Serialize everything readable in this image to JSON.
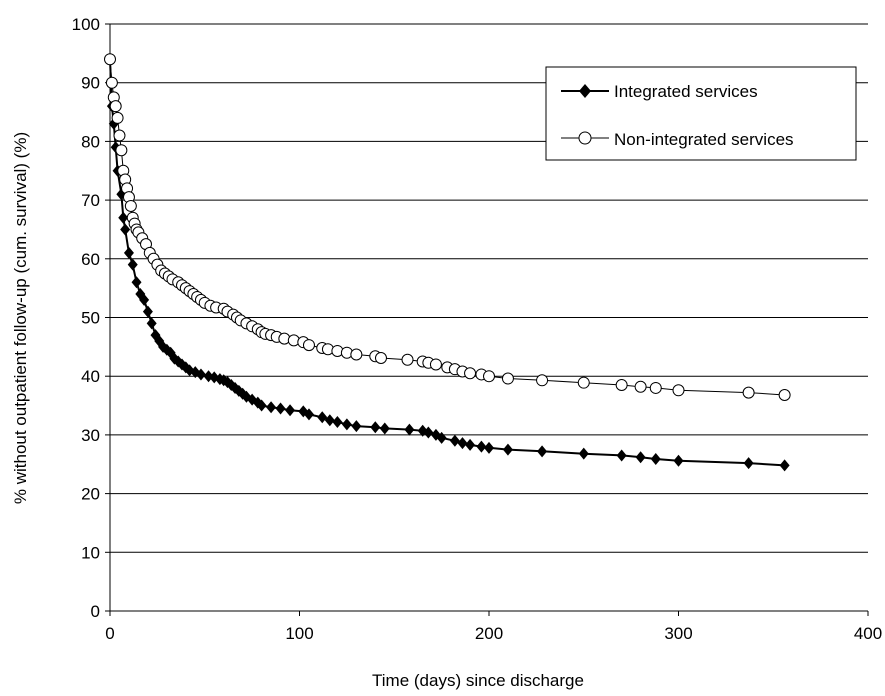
{
  "chart_data": {
    "type": "line",
    "xlabel": "Time (days) since discharge",
    "ylabel": "% without outpatient follow-up (cum. survival) (%)",
    "xlim": [
      0,
      400
    ],
    "ylim": [
      0,
      100
    ],
    "xticks": [
      0,
      100,
      200,
      300,
      400
    ],
    "yticks": [
      0,
      10,
      20,
      30,
      40,
      50,
      60,
      70,
      80,
      90,
      100
    ],
    "grid": "horizontal",
    "legend_position": "top-right",
    "series": [
      {
        "name": "Integrated services",
        "marker": "filled-diamond",
        "color": "#000000",
        "points": [
          [
            0,
            94
          ],
          [
            1,
            86
          ],
          [
            2,
            83
          ],
          [
            3,
            79
          ],
          [
            4,
            75
          ],
          [
            6,
            71
          ],
          [
            7,
            67
          ],
          [
            8,
            65
          ],
          [
            10,
            61
          ],
          [
            12,
            59
          ],
          [
            14,
            56
          ],
          [
            16,
            54
          ],
          [
            18,
            53
          ],
          [
            20,
            51
          ],
          [
            22,
            49
          ],
          [
            24,
            47
          ],
          [
            26,
            46
          ],
          [
            28,
            45
          ],
          [
            30,
            44.5
          ],
          [
            32,
            44
          ],
          [
            34,
            43
          ],
          [
            36,
            42.5
          ],
          [
            38,
            42
          ],
          [
            40,
            41.5
          ],
          [
            42,
            41
          ],
          [
            45,
            40.7
          ],
          [
            48,
            40.3
          ],
          [
            52,
            40
          ],
          [
            55,
            39.8
          ],
          [
            58,
            39.5
          ],
          [
            60,
            39.3
          ],
          [
            62,
            39
          ],
          [
            64,
            38.5
          ],
          [
            66,
            38
          ],
          [
            68,
            37.5
          ],
          [
            70,
            37
          ],
          [
            72,
            36.5
          ],
          [
            75,
            36
          ],
          [
            78,
            35.5
          ],
          [
            80,
            35
          ],
          [
            85,
            34.7
          ],
          [
            90,
            34.5
          ],
          [
            95,
            34.2
          ],
          [
            102,
            34
          ],
          [
            105,
            33.5
          ],
          [
            112,
            33
          ],
          [
            116,
            32.5
          ],
          [
            120,
            32.2
          ],
          [
            125,
            31.8
          ],
          [
            130,
            31.5
          ],
          [
            140,
            31.3
          ],
          [
            145,
            31.1
          ],
          [
            158,
            30.9
          ],
          [
            165,
            30.7
          ],
          [
            168,
            30.4
          ],
          [
            172,
            30
          ],
          [
            175,
            29.5
          ],
          [
            182,
            29
          ],
          [
            186,
            28.6
          ],
          [
            190,
            28.3
          ],
          [
            196,
            28
          ],
          [
            200,
            27.8
          ],
          [
            210,
            27.5
          ],
          [
            228,
            27.2
          ],
          [
            250,
            26.8
          ],
          [
            270,
            26.5
          ],
          [
            280,
            26.2
          ],
          [
            288,
            25.9
          ],
          [
            300,
            25.6
          ],
          [
            337,
            25.2
          ],
          [
            356,
            24.8
          ]
        ]
      },
      {
        "name": "Non-integrated services",
        "marker": "open-circle",
        "color": "#000000",
        "points": [
          [
            0,
            94
          ],
          [
            1,
            90
          ],
          [
            2,
            87.5
          ],
          [
            3,
            86
          ],
          [
            4,
            84
          ],
          [
            5,
            81
          ],
          [
            6,
            78.5
          ],
          [
            7,
            75
          ],
          [
            8,
            73.5
          ],
          [
            9,
            72
          ],
          [
            10,
            70.5
          ],
          [
            11,
            69
          ],
          [
            12,
            67
          ],
          [
            13,
            66
          ],
          [
            14,
            65
          ],
          [
            15,
            64.5
          ],
          [
            17,
            63.5
          ],
          [
            19,
            62.5
          ],
          [
            21,
            61
          ],
          [
            23,
            60
          ],
          [
            25,
            59
          ],
          [
            27,
            58
          ],
          [
            29,
            57.5
          ],
          [
            31,
            57
          ],
          [
            33,
            56.5
          ],
          [
            36,
            56
          ],
          [
            38,
            55.5
          ],
          [
            40,
            55
          ],
          [
            42,
            54.5
          ],
          [
            44,
            54
          ],
          [
            46,
            53.5
          ],
          [
            48,
            53
          ],
          [
            50,
            52.5
          ],
          [
            53,
            52
          ],
          [
            56,
            51.7
          ],
          [
            60,
            51.5
          ],
          [
            62,
            51
          ],
          [
            65,
            50.5
          ],
          [
            67,
            50
          ],
          [
            69,
            49.5
          ],
          [
            72,
            49
          ],
          [
            75,
            48.5
          ],
          [
            78,
            48
          ],
          [
            80,
            47.5
          ],
          [
            82,
            47.2
          ],
          [
            85,
            47
          ],
          [
            88,
            46.7
          ],
          [
            92,
            46.4
          ],
          [
            97,
            46.1
          ],
          [
            102,
            45.8
          ],
          [
            105,
            45.3
          ],
          [
            112,
            44.8
          ],
          [
            115,
            44.6
          ],
          [
            120,
            44.3
          ],
          [
            125,
            44
          ],
          [
            130,
            43.7
          ],
          [
            140,
            43.4
          ],
          [
            143,
            43.1
          ],
          [
            157,
            42.8
          ],
          [
            165,
            42.5
          ],
          [
            168,
            42.3
          ],
          [
            172,
            42
          ],
          [
            178,
            41.5
          ],
          [
            182,
            41.2
          ],
          [
            186,
            40.8
          ],
          [
            190,
            40.5
          ],
          [
            196,
            40.3
          ],
          [
            200,
            40
          ],
          [
            210,
            39.6
          ],
          [
            228,
            39.3
          ],
          [
            250,
            38.9
          ],
          [
            270,
            38.5
          ],
          [
            280,
            38.2
          ],
          [
            288,
            38
          ],
          [
            300,
            37.6
          ],
          [
            337,
            37.2
          ],
          [
            356,
            36.8
          ]
        ]
      }
    ]
  }
}
